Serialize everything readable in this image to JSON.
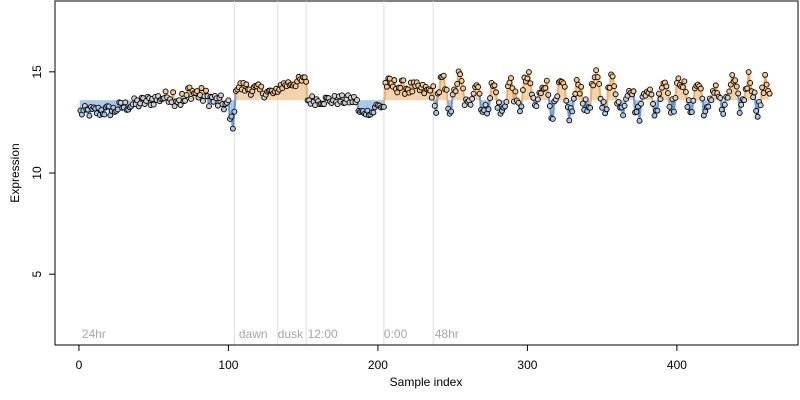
{
  "chart_data": {
    "type": "scatter",
    "title": "",
    "xlabel": "Sample index",
    "ylabel": "Expression",
    "xlim": [
      -16,
      481
    ],
    "ylim": [
      1.5,
      18.5
    ],
    "x_ticks": [
      0,
      100,
      200,
      300,
      400
    ],
    "y_ticks": [
      5,
      10,
      15
    ],
    "grid": false,
    "legend": "none",
    "colors": {
      "point_fill_high": "#f5c890",
      "point_fill_low": "#a9c6e8",
      "point_fill_neutral": "#d0d0d0",
      "point_stroke": "#000000",
      "mean_line_high": "#eaa860",
      "mean_line_low": "#5b8fd0",
      "separator": "#dddddd",
      "annotation": "#a6a6a6"
    },
    "separators": [
      104,
      133,
      152,
      204,
      237
    ],
    "annotations": [
      {
        "x": 2,
        "text": "24hr"
      },
      {
        "x": 107,
        "text": "dawn"
      },
      {
        "x": 133,
        "text": "dusk"
      },
      {
        "x": 153,
        "text": "12:00"
      },
      {
        "x": 204,
        "text": "0:00"
      },
      {
        "x": 238,
        "text": "48hr"
      }
    ],
    "baseline": 13.6,
    "points": []
  }
}
